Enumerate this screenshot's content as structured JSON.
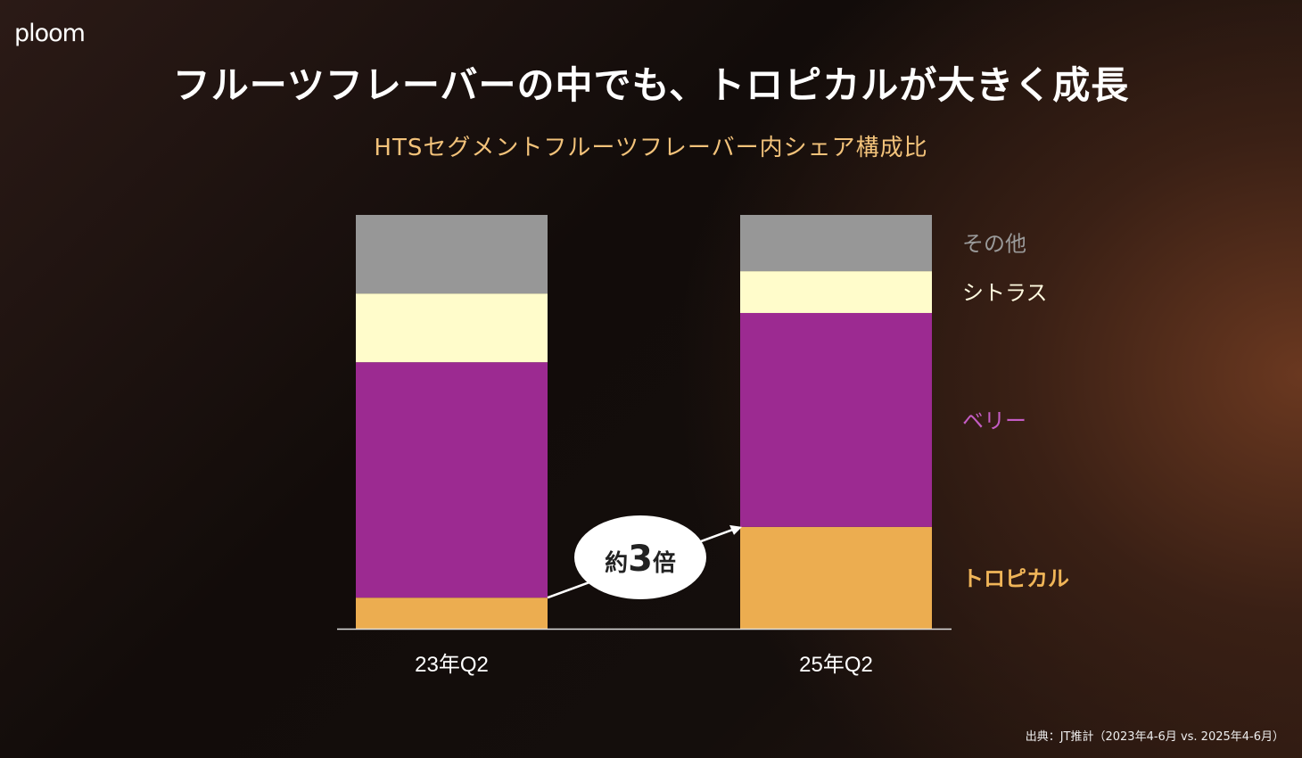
{
  "logo": "ploom",
  "title": "フルーツフレーバーの中でも、トロピカルが大きく成長",
  "subtitle": "HTSセグメントフルーツフレーバー内シェア構成比",
  "source": "出典：JT推計（2023年4-6月 vs. 2025年4-6月）",
  "chart_data": {
    "type": "bar",
    "stacked": true,
    "title": "HTSセグメントフルーツフレーバー内シェア構成比",
    "categories": [
      "23年Q2",
      "25年Q2"
    ],
    "ylim": [
      0,
      100
    ],
    "unit": "%",
    "series": [
      {
        "name": "トロピカル",
        "color": "#ecad50",
        "label_color": "#f0b558",
        "values": [
          7.5,
          24.6
        ]
      },
      {
        "name": "ベリー",
        "color": "#9c2a91",
        "label_color": "#c45cc4",
        "values": [
          56.9,
          51.7
        ]
      },
      {
        "name": "シトラス",
        "color": "#fffccb",
        "label_color": "#fffbe0",
        "values": [
          16.6,
          10.1
        ]
      },
      {
        "name": "その他",
        "color": "#979797",
        "label_color": "#9a9a9a",
        "values": [
          19.0,
          13.6
        ]
      }
    ],
    "annotation": {
      "prefix": "約",
      "number": "3",
      "suffix": "倍"
    },
    "legend": "right"
  }
}
